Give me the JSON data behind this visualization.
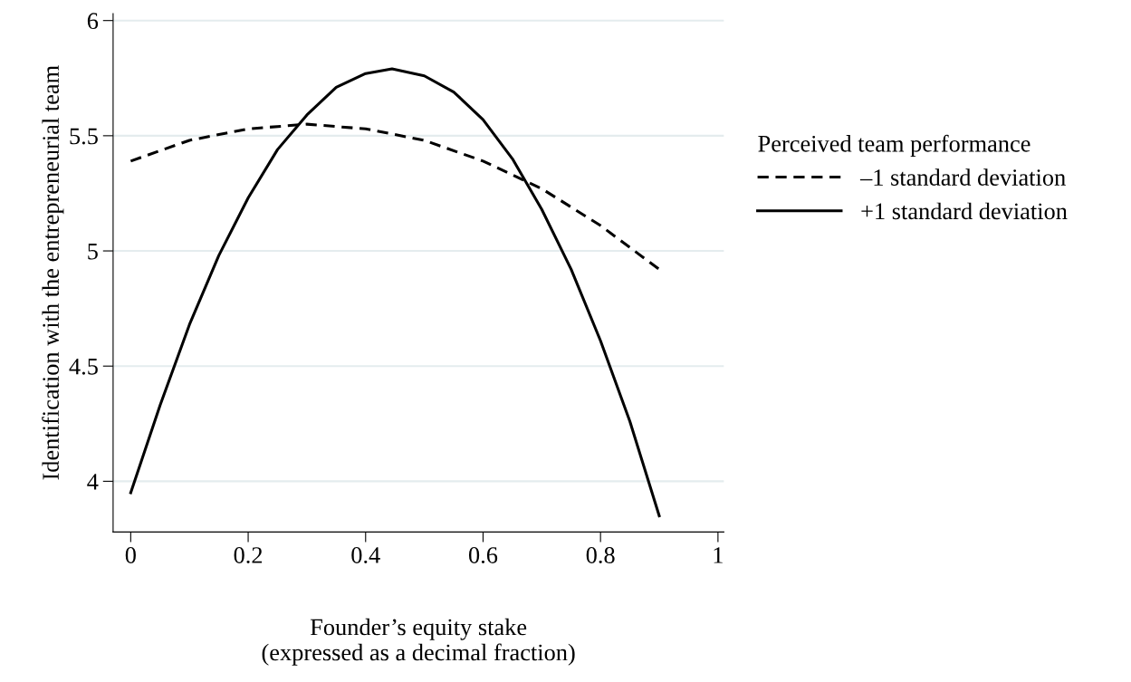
{
  "chart_data": {
    "type": "line",
    "xlabel": "Founder’s equity stake\n(expressed as a decimal fraction)",
    "ylabel": "Identification with the entrepreneurial team",
    "legend_title": "Perceived team performance",
    "legend": "right",
    "grid": "y",
    "xlim": [
      -0.03,
      1.01
    ],
    "ylim": [
      3.78,
      6.03
    ],
    "xticks": [
      {
        "value": 0,
        "label": "0"
      },
      0.2,
      0.4,
      0.6,
      0.8,
      {
        "value": 1,
        "label": "1"
      }
    ],
    "yticks": [
      {
        "value": 4,
        "label": "4"
      },
      4.5,
      {
        "value": 5,
        "label": "5"
      },
      5.5,
      {
        "value": 6,
        "label": "6"
      }
    ],
    "series": [
      {
        "name": "–1 standard deviation",
        "color": "#000000",
        "line_style": "dashed",
        "x": [
          0,
          0.1,
          0.2,
          0.3,
          0.4,
          0.5,
          0.6,
          0.7,
          0.8,
          0.9
        ],
        "values": [
          5.39,
          5.48,
          5.53,
          5.55,
          5.53,
          5.48,
          5.39,
          5.27,
          5.11,
          4.92
        ]
      },
      {
        "name": "+1 standard deviation",
        "color": "#000000",
        "line_style": "solid",
        "x": [
          0,
          0.05,
          0.1,
          0.15,
          0.2,
          0.25,
          0.3,
          0.35,
          0.4,
          0.445,
          0.5,
          0.55,
          0.6,
          0.65,
          0.7,
          0.75,
          0.8,
          0.85,
          0.9
        ],
        "values": [
          3.95,
          4.33,
          4.68,
          4.98,
          5.23,
          5.44,
          5.59,
          5.71,
          5.77,
          5.79,
          5.76,
          5.69,
          5.57,
          5.4,
          5.18,
          4.92,
          4.61,
          4.26,
          3.85
        ]
      }
    ]
  }
}
